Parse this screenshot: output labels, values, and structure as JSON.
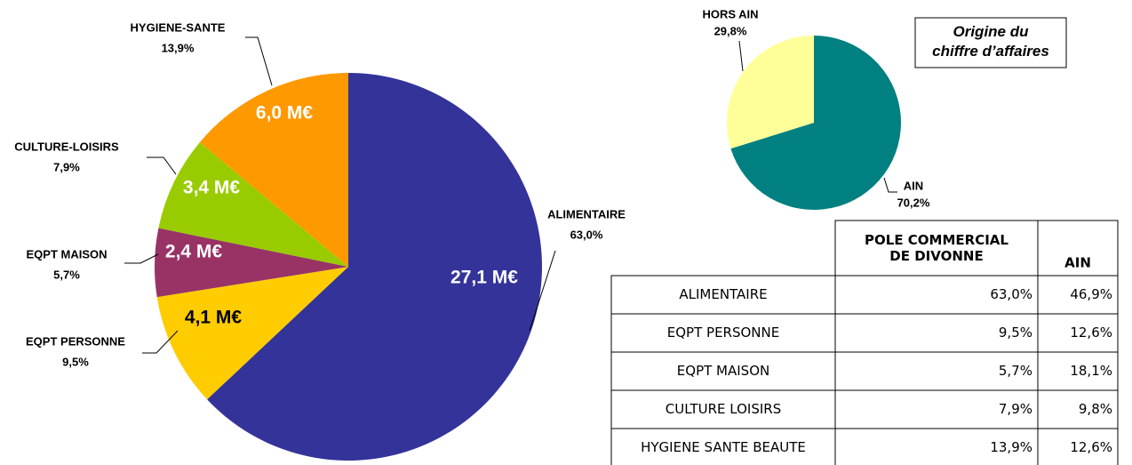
{
  "chart_data": [
    {
      "type": "pie",
      "categories": [
        "ALIMENTAIRE",
        "EQPT PERSONNE",
        "EQPT MAISON",
        "CULTURE-LOISIRS",
        "HYGIENE-SANTE"
      ],
      "values": [
        63.0,
        9.5,
        5.7,
        7.9,
        13.9
      ],
      "value_labels": [
        "63,0%",
        "9,5%",
        "5,7%",
        "7,9%",
        "13,9%"
      ],
      "amount_labels": [
        "27,1 M€",
        "4,1 M€",
        "2,4 M€",
        "3,4 M€",
        "6,0 M€"
      ],
      "colors": [
        "#333399",
        "#ffcc00",
        "#993366",
        "#99cc00",
        "#ff9900"
      ]
    },
    {
      "type": "pie",
      "title": "Origine du chiffre d’affaires",
      "categories": [
        "AIN",
        "HORS AIN"
      ],
      "values": [
        70.2,
        29.8
      ],
      "value_labels": [
        "70,2%",
        "29,8%"
      ],
      "colors": [
        "#008080",
        "#ffff99"
      ]
    }
  ],
  "table": {
    "header": [
      "POLE COMMERCIAL DE DIVONNE",
      "AIN"
    ],
    "rows": [
      [
        "ALIMENTAIRE",
        "63,0%",
        "46,9%"
      ],
      [
        "EQPT PERSONNE",
        "9,5%",
        "12,6%"
      ],
      [
        "EQPT MAISON",
        "5,7%",
        "18,1%"
      ],
      [
        "CULTURE LOISIRS",
        "7,9%",
        "9,8%"
      ],
      [
        "HYGIENE SANTE BEAUTE",
        "13,9%",
        "12,6%"
      ]
    ]
  }
}
